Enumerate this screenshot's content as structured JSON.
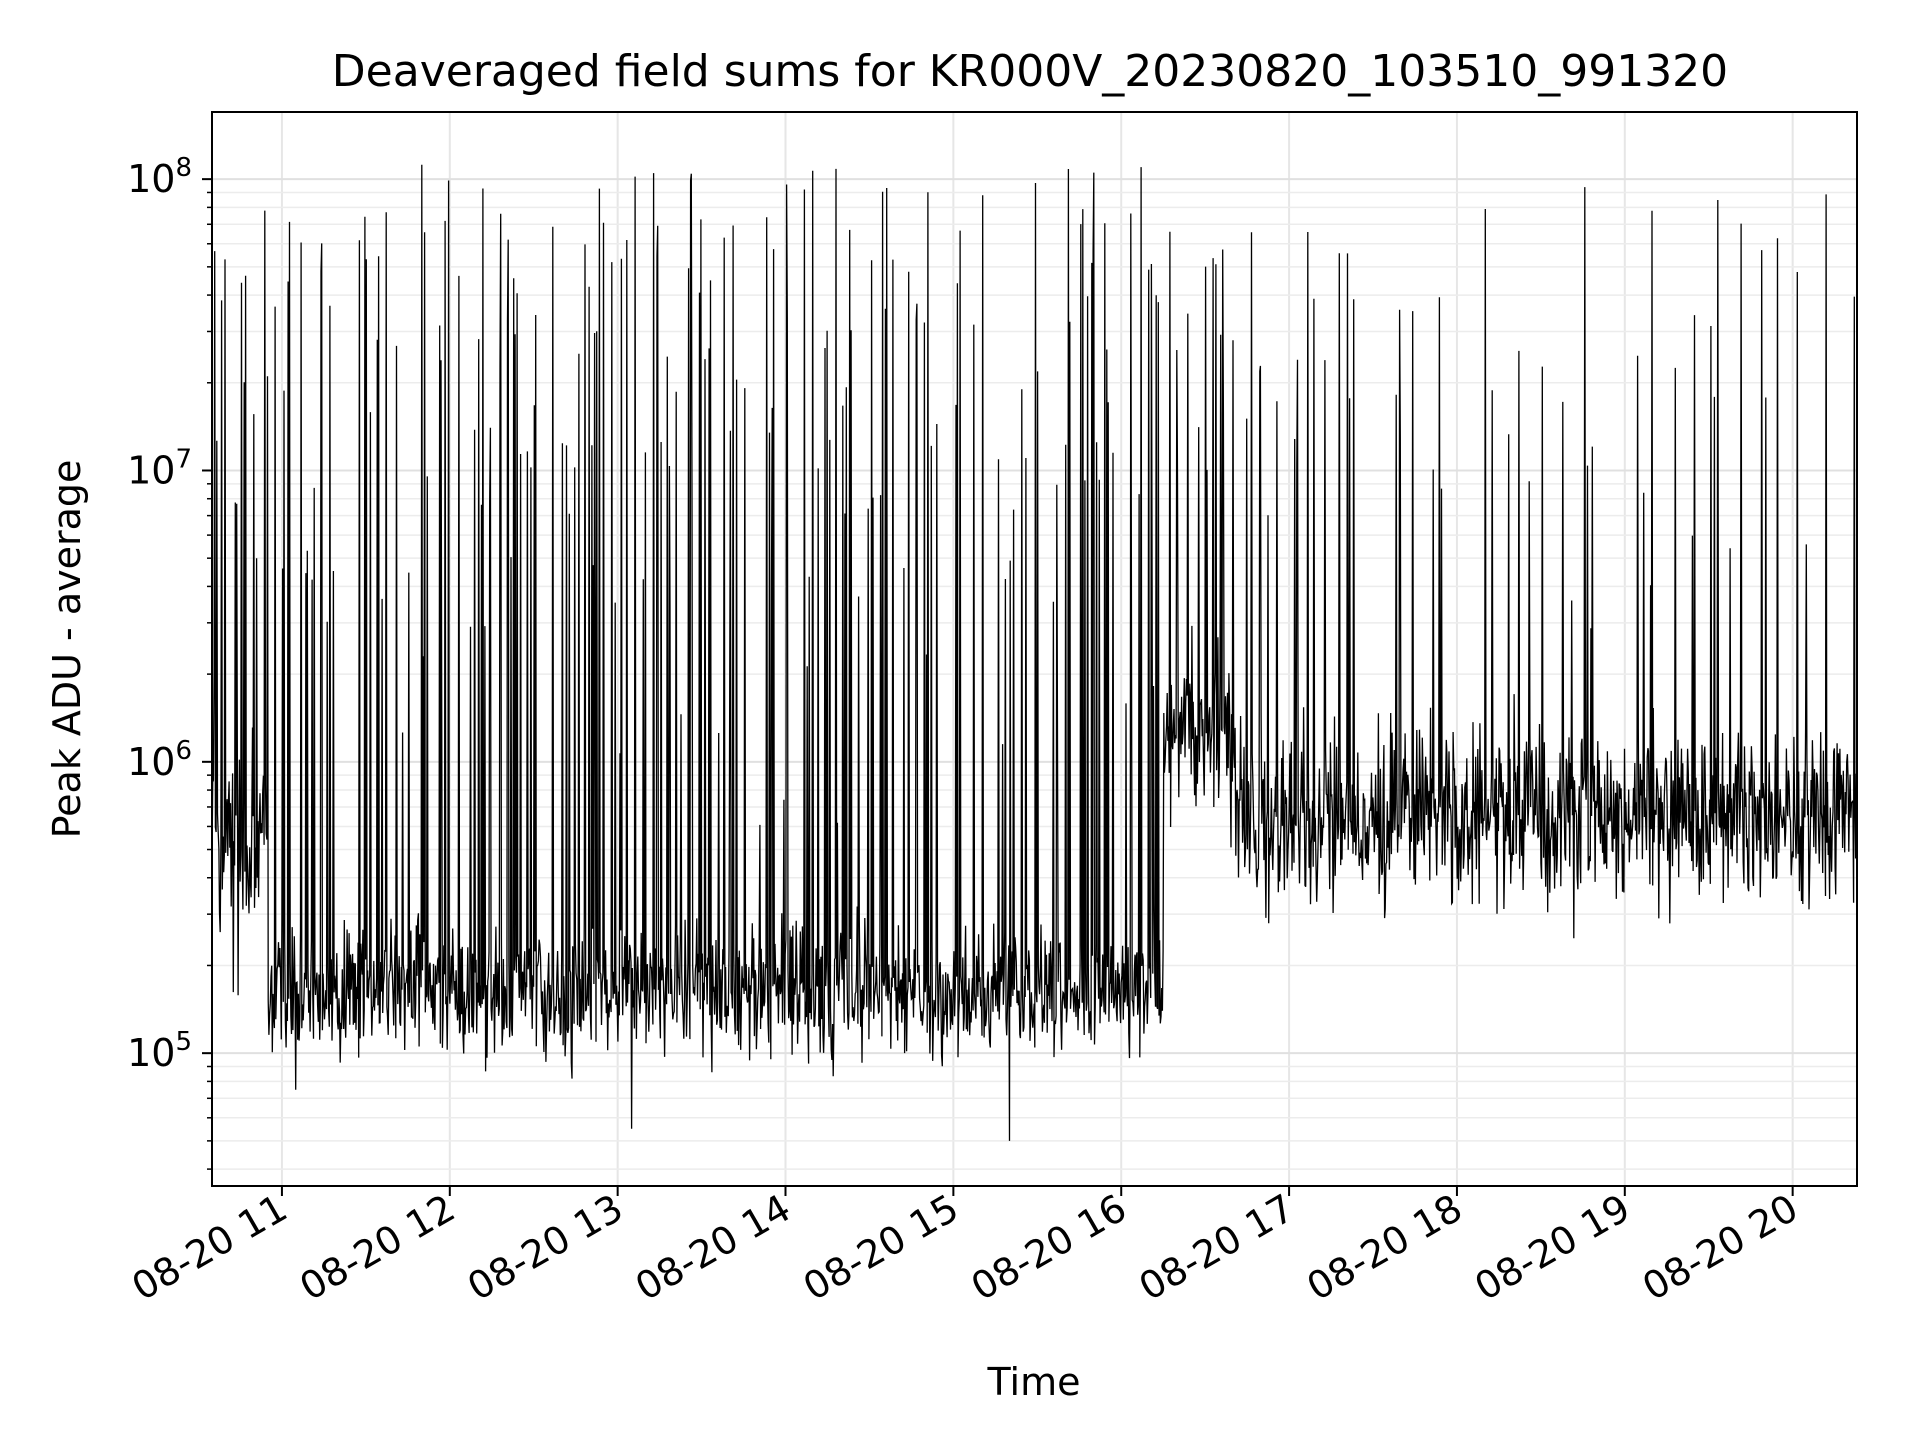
{
  "chart_data": {
    "type": "line",
    "title": "Deaveraged field sums for KR000V_20230820_103510_991320",
    "xlabel": "Time",
    "ylabel": "Peak ADU - average",
    "yscale": "log",
    "ylim": [
      35000,
      170000000
    ],
    "xlim": [
      "2023-08-20 10:35",
      "2023-08-20 20:23"
    ],
    "grid": true,
    "x_ticks": [
      {
        "at": "2023-08-20 11:00",
        "label": "08-20 11"
      },
      {
        "at": "2023-08-20 12:00",
        "label": "08-20 12"
      },
      {
        "at": "2023-08-20 13:00",
        "label": "08-20 13"
      },
      {
        "at": "2023-08-20 14:00",
        "label": "08-20 14"
      },
      {
        "at": "2023-08-20 15:00",
        "label": "08-20 15"
      },
      {
        "at": "2023-08-20 16:00",
        "label": "08-20 16"
      },
      {
        "at": "2023-08-20 17:00",
        "label": "08-20 17"
      },
      {
        "at": "2023-08-20 18:00",
        "label": "08-20 18"
      },
      {
        "at": "2023-08-20 19:00",
        "label": "08-20 19"
      },
      {
        "at": "2023-08-20 20:00",
        "label": "08-20 20"
      }
    ],
    "y_ticks": [
      {
        "value": 100000,
        "base": "10",
        "exp": "5"
      },
      {
        "value": 1000000,
        "base": "10",
        "exp": "6"
      },
      {
        "value": 10000000,
        "base": "10",
        "exp": "7"
      },
      {
        "value": 100000000,
        "base": "10",
        "exp": "8"
      }
    ],
    "series_color": "#000000",
    "segments": [
      {
        "start": "2023-08-20 10:35",
        "end": "2023-08-20 10:55",
        "median": 500000,
        "spread": 0.35,
        "spike_rate": 0.14,
        "spike_max": 80000000
      },
      {
        "start": "2023-08-20 10:55",
        "end": "2023-08-20 16:15",
        "median": 160000,
        "spread": 0.22,
        "spike_rate": 0.13,
        "spike_max": 110000000
      },
      {
        "start": "2023-08-20 16:15",
        "end": "2023-08-20 16:40",
        "median": 1300000,
        "spread": 0.3,
        "spike_rate": 0.12,
        "spike_max": 70000000
      },
      {
        "start": "2023-08-20 16:40",
        "end": "2023-08-20 20:23",
        "median": 650000,
        "spread": 0.3,
        "spike_rate": 0.07,
        "spike_max": 95000000
      }
    ],
    "notable_extremes": [
      {
        "x": "2023-08-20 11:50",
        "y": 112000000
      },
      {
        "x": "2023-08-20 16:07",
        "y": 110000000
      },
      {
        "x": "2023-08-20 15:20",
        "y": 50000
      },
      {
        "x": "2023-08-20 13:05",
        "y": 55000
      }
    ]
  }
}
